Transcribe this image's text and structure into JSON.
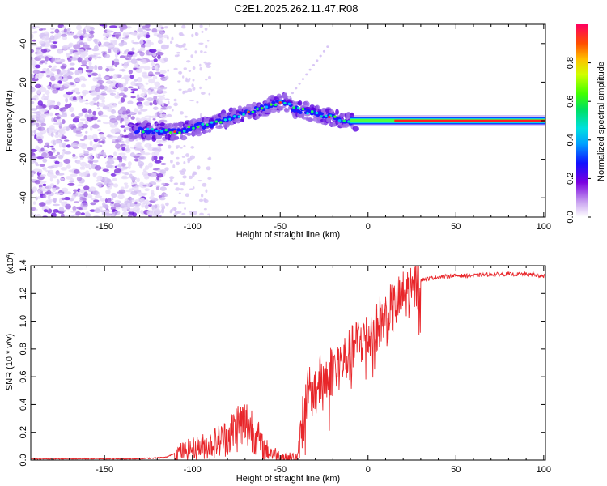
{
  "title": "C2E1.2025.262.11.47.R08",
  "chart_data": [
    {
      "type": "heatmap",
      "name": "spectrogram",
      "xlabel": "Height of straight line (km)",
      "ylabel": "Frequency (Hz)",
      "xlim": [
        -192,
        101
      ],
      "ylim": [
        -50,
        50
      ],
      "xticks": [
        -150,
        -100,
        -50,
        0,
        50,
        100
      ],
      "xtick_labels": [
        "-150",
        "-100",
        "-50",
        "0",
        "50",
        "100"
      ],
      "yticks": [
        -40,
        -20,
        0,
        20,
        40
      ],
      "ytick_labels": [
        "-40",
        "-20",
        "0",
        "20",
        "40"
      ],
      "ridge": {
        "x": [
          -130,
          -120,
          -112,
          -105,
          -98,
          -90,
          -80,
          -70,
          -62,
          -55,
          -48,
          -42,
          -35,
          -28,
          -20,
          -13,
          -8,
          0,
          10,
          20,
          40,
          60,
          80,
          100
        ],
        "y": [
          -5,
          -5.5,
          -6,
          -5,
          -3,
          -2,
          1,
          4,
          6,
          8,
          10,
          6,
          5,
          3,
          1.5,
          0,
          -0.5,
          0,
          0,
          0,
          0,
          0,
          0,
          0
        ]
      },
      "colorbar": {
        "label": "Normalized spectral amplitude",
        "range": [
          0,
          1
        ],
        "ticks": [
          0.0,
          0.2,
          0.4,
          0.6,
          0.8
        ],
        "tick_labels": [
          "0.0",
          "0.2",
          "0.4",
          "0.6",
          "0.8"
        ]
      }
    },
    {
      "type": "line",
      "name": "snr",
      "xlabel": "Height of straight line (km)",
      "ylabel": "SNR (10 * v/v)",
      "multiplier_label": "(x10",
      "multiplier_exponent": "4",
      "multiplier_close": ")",
      "xlim": [
        -192,
        101
      ],
      "ylim": [
        0,
        1.4
      ],
      "xticks": [
        -150,
        -100,
        -50,
        0,
        50,
        100
      ],
      "xtick_labels": [
        "-150",
        "-100",
        "-50",
        "0",
        "50",
        "100"
      ],
      "yticks": [
        0.0,
        0.2,
        0.4,
        0.6,
        0.8,
        1.0,
        1.2,
        1.4
      ],
      "ytick_labels": [
        "0.0",
        "0.2",
        "0.4",
        "0.6",
        "0.8",
        "1.0",
        "1.2",
        "1.4"
      ],
      "color": "#e8262a",
      "series": [
        {
          "name": "SNR",
          "x": [
            -192,
            -160,
            -130,
            -115,
            -108,
            -100,
            -90,
            -80,
            -75,
            -70,
            -65,
            -60,
            -55,
            -50,
            -45,
            -40,
            -36,
            -30,
            -25,
            -20,
            -15,
            -10,
            -5,
            0,
            5,
            10,
            15,
            20,
            25,
            30,
            40,
            50,
            60,
            70,
            80,
            90,
            96,
            101
          ],
          "y": [
            0.01,
            0.01,
            0.01,
            0.02,
            0.06,
            0.09,
            0.12,
            0.18,
            0.26,
            0.28,
            0.24,
            0.1,
            0.06,
            0.03,
            0.02,
            0.02,
            0.45,
            0.55,
            0.62,
            0.68,
            0.72,
            0.78,
            0.88,
            0.9,
            1.0,
            1.05,
            1.12,
            1.2,
            1.25,
            1.3,
            1.32,
            1.33,
            1.33,
            1.34,
            1.34,
            1.34,
            1.33,
            1.33
          ]
        }
      ]
    }
  ]
}
